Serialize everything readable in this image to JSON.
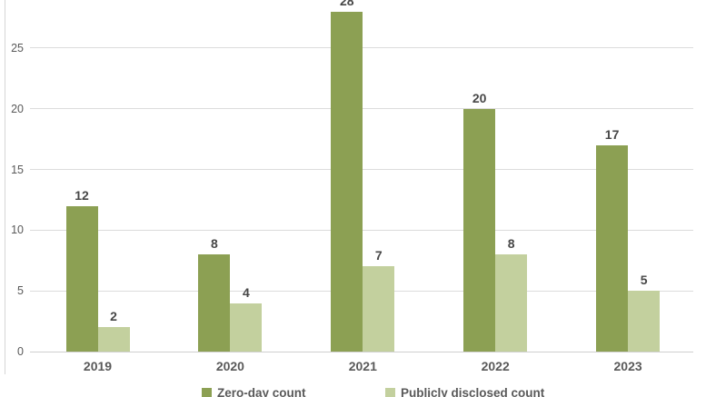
{
  "chart_data": {
    "type": "bar",
    "title": "",
    "categories": [
      "2019",
      "2020",
      "2021",
      "2022",
      "2023"
    ],
    "series": [
      {
        "name": "Zero-day count",
        "color": "#8ca053",
        "values": [
          12,
          8,
          28,
          20,
          17
        ]
      },
      {
        "name": "Publicly disclosed count",
        "color": "#c3d09e",
        "values": [
          2,
          4,
          7,
          8,
          5
        ]
      }
    ],
    "xlabel": "",
    "ylabel": "",
    "ylim": [
      0,
      28.9
    ],
    "yticks": [
      0,
      5,
      10,
      15,
      20,
      25
    ],
    "grid": true,
    "value_labels": true,
    "legend_position": "bottom"
  },
  "colors": {
    "series_dark": "#8ca053",
    "series_light": "#c3d09e",
    "gridline": "#dcdcdc",
    "axis_text": "#595959",
    "value_label_text": "#474747",
    "background": "#ffffff"
  }
}
